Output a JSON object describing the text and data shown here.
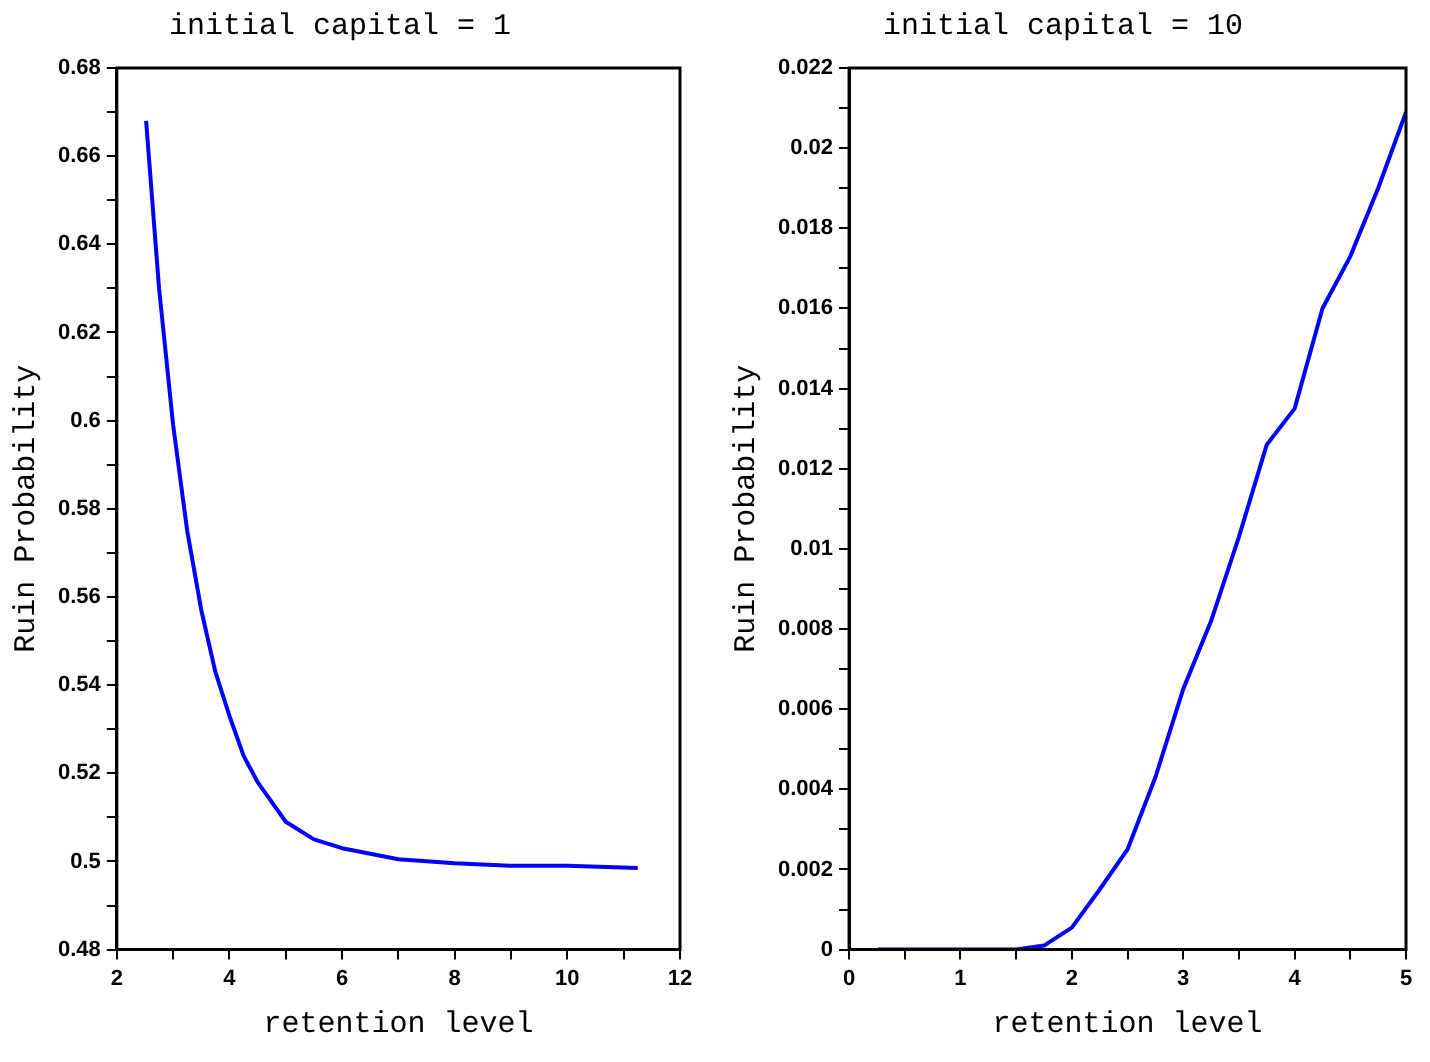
{
  "chart_data": [
    {
      "type": "line",
      "title": "initial capital = 1",
      "xlabel": "retention level",
      "ylabel": "Ruin Probability",
      "marker": "none",
      "line_style": "solid",
      "grid": false,
      "x": [
        2.52,
        2.75,
        3,
        3.25,
        3.5,
        3.75,
        4,
        4.25,
        4.5,
        5,
        5.5,
        6,
        7,
        8,
        9,
        10,
        11.25
      ],
      "series": [
        {
          "color": "#0000ff",
          "values": [
            0.668,
            0.63,
            0.599,
            0.575,
            0.557,
            0.543,
            0.533,
            0.524,
            0.518,
            0.509,
            0.505,
            0.503,
            0.5005,
            0.4996,
            0.499,
            0.499,
            0.4985
          ]
        }
      ],
      "xlim": [
        2,
        12
      ],
      "ylim": [
        0.48,
        0.68
      ],
      "xticks": [
        2,
        {
          "value": 3,
          "label": null
        },
        4,
        {
          "value": 5,
          "label": null
        },
        6,
        {
          "value": 7,
          "label": null
        },
        8,
        {
          "value": 9,
          "label": null
        },
        10,
        {
          "value": 11,
          "label": null
        },
        12
      ],
      "yticks": [
        0.48,
        {
          "value": 0.49,
          "label": null
        },
        0.5,
        {
          "value": 0.51,
          "label": null
        },
        0.52,
        {
          "value": 0.53,
          "label": null
        },
        0.54,
        {
          "value": 0.55,
          "label": null
        },
        0.56,
        {
          "value": 0.57,
          "label": null
        },
        0.58,
        {
          "value": 0.59,
          "label": null
        },
        0.6,
        {
          "value": 0.61,
          "label": null
        },
        0.62,
        {
          "value": 0.63,
          "label": null
        },
        0.64,
        {
          "value": 0.65,
          "label": null
        },
        0.66,
        {
          "value": 0.67,
          "label": null
        },
        0.68
      ]
    },
    {
      "type": "line",
      "title": "initial capital = 10",
      "xlabel": "retention level",
      "ylabel": "Ruin Probability",
      "marker": "none",
      "line_style": "solid",
      "grid": false,
      "x": [
        0.26,
        1.5,
        1.75,
        2,
        2.25,
        2.5,
        2.75,
        3,
        3.25,
        3.5,
        3.75,
        4,
        4.25,
        4.5,
        4.75,
        5
      ],
      "series": [
        {
          "color": "#0000ff",
          "values": [
            0,
            0,
            0.0001,
            0.00055,
            0.0015,
            0.0025,
            0.0043,
            0.0065,
            0.0082,
            0.0103,
            0.0126,
            0.0135,
            0.016,
            0.0173,
            0.019,
            0.0209
          ]
        }
      ],
      "xlim": [
        0,
        5
      ],
      "ylim": [
        0,
        0.022
      ],
      "xticks": [
        0,
        {
          "value": 0.5,
          "label": null
        },
        1,
        {
          "value": 1.5,
          "label": null
        },
        2,
        {
          "value": 2.5,
          "label": null
        },
        3,
        {
          "value": 3.5,
          "label": null
        },
        4,
        {
          "value": 4.5,
          "label": null
        },
        5
      ],
      "yticks": [
        0,
        {
          "value": 0.001,
          "label": null
        },
        0.002,
        {
          "value": 0.003,
          "label": null
        },
        0.004,
        {
          "value": 0.005,
          "label": null
        },
        0.006,
        {
          "value": 0.007,
          "label": null
        },
        0.008,
        {
          "value": 0.009,
          "label": null
        },
        0.01,
        {
          "value": 0.011,
          "label": null
        },
        0.012,
        {
          "value": 0.013,
          "label": null
        },
        0.014,
        {
          "value": 0.015,
          "label": null
        },
        0.016,
        {
          "value": 0.017,
          "label": null
        },
        0.018,
        {
          "value": 0.019,
          "label": null
        },
        0.02,
        {
          "value": 0.021,
          "label": null
        },
        0.022
      ]
    }
  ]
}
